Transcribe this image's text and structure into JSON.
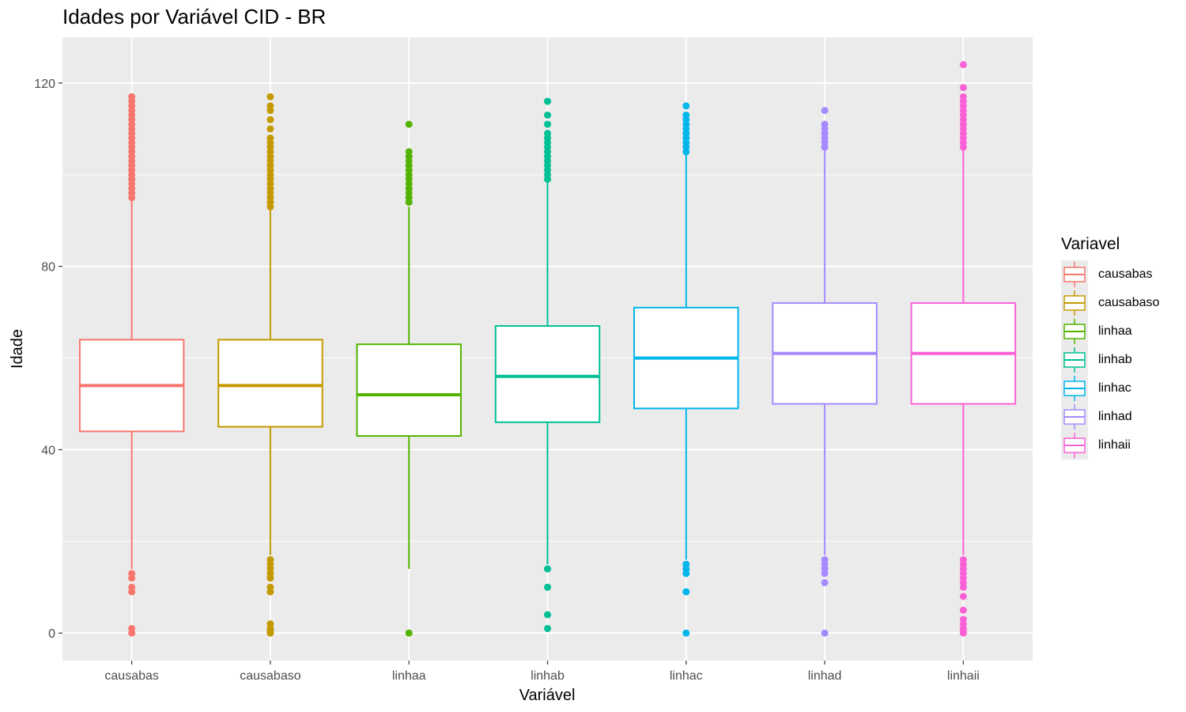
{
  "chart_data": {
    "type": "boxplot",
    "title": "Idades por Variável CID - BR",
    "xlabel": "Variável",
    "ylabel": "Idade",
    "ylim": [
      -6,
      130
    ],
    "yticks": [
      0,
      40,
      80,
      120
    ],
    "grid": true,
    "legend": {
      "title": "Variavel",
      "placement": "right"
    },
    "categories": [
      "causabas",
      "causabaso",
      "linhaa",
      "linhab",
      "linhac",
      "linhad",
      "linhaii"
    ],
    "series": [
      {
        "name": "causabas",
        "color": "#F8766D",
        "q1": 44,
        "median": 54,
        "q3": 64,
        "whisker_low": 14,
        "whisker_high": 95,
        "outliers": [
          0,
          1,
          9,
          10,
          12,
          13,
          95,
          96,
          97,
          98,
          99,
          100,
          101,
          102,
          103,
          104,
          105,
          106,
          107,
          108,
          109,
          110,
          111,
          112,
          113,
          114,
          115,
          116,
          117
        ]
      },
      {
        "name": "causabaso",
        "color": "#C49A00",
        "q1": 45,
        "median": 54,
        "q3": 64,
        "whisker_low": 17,
        "whisker_high": 93,
        "outliers": [
          0,
          0.5,
          1,
          2,
          9,
          10,
          12,
          13,
          14,
          15,
          16,
          93,
          94,
          95,
          96,
          97,
          98,
          99,
          100,
          101,
          102,
          103,
          104,
          105,
          106,
          107,
          108,
          110,
          112,
          114,
          115,
          117
        ]
      },
      {
        "name": "linhaa",
        "color": "#53B400",
        "q1": 43,
        "median": 52,
        "q3": 63,
        "whisker_low": 14,
        "whisker_high": 93,
        "outliers": [
          0,
          94,
          95,
          96,
          97,
          98,
          99,
          100,
          101,
          102,
          103,
          104,
          105,
          111
        ]
      },
      {
        "name": "linhab",
        "color": "#00C094",
        "q1": 46,
        "median": 56,
        "q3": 67,
        "whisker_low": 15,
        "whisker_high": 99,
        "outliers": [
          1,
          4,
          10,
          14,
          99,
          100,
          101,
          102,
          103,
          104,
          105,
          106,
          107,
          108,
          109,
          111,
          113,
          116
        ]
      },
      {
        "name": "linhac",
        "color": "#00B6EB",
        "q1": 49,
        "median": 60,
        "q3": 71,
        "whisker_low": 16,
        "whisker_high": 105,
        "outliers": [
          0,
          9,
          13,
          14,
          15,
          105,
          106,
          107,
          108,
          109,
          110,
          111,
          112,
          113,
          115
        ]
      },
      {
        "name": "linhad",
        "color": "#A58AFF",
        "q1": 50,
        "median": 61,
        "q3": 72,
        "whisker_low": 17,
        "whisker_high": 106,
        "outliers": [
          0,
          11,
          13,
          14,
          15,
          16,
          106,
          107,
          108,
          109,
          110,
          111,
          114
        ]
      },
      {
        "name": "linhaii",
        "color": "#FB61D7",
        "q1": 50,
        "median": 61,
        "q3": 72,
        "whisker_low": 17,
        "whisker_high": 106,
        "outliers": [
          0,
          0.5,
          1,
          2,
          3,
          5,
          8,
          10,
          11,
          12,
          13,
          14,
          15,
          16,
          106,
          107,
          108,
          109,
          110,
          111,
          112,
          113,
          114,
          115,
          116,
          117,
          119,
          124
        ]
      }
    ]
  }
}
